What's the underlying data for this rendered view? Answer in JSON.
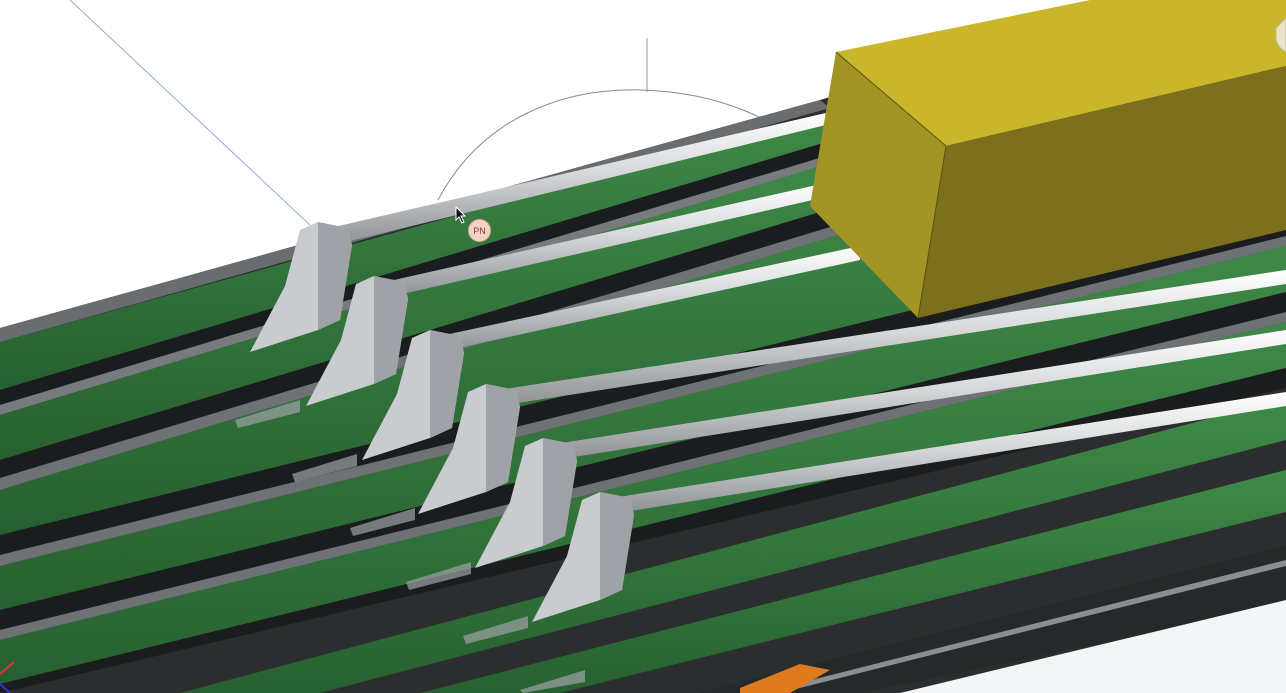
{
  "viewport": {
    "scene": "3d-model-view"
  },
  "part_note_badge": {
    "label": "PN"
  },
  "colors": {
    "background": "#ffffff",
    "conveyor_belt": "#2e6b36",
    "conveyor_belt_light": "#3f8a48",
    "frame_dark": "#2b2d2e",
    "frame_gray": "#5f6264",
    "bracket": "#c9cbce",
    "rod": "#b9bcbf",
    "block_top": "#c9b62b",
    "block_front": "#a39426",
    "block_side": "#7d701c",
    "accent_orange": "#e07a1f"
  },
  "icons": {
    "cursor": "mouse-pointer-icon",
    "corner_widget": "view-cube-icon"
  }
}
